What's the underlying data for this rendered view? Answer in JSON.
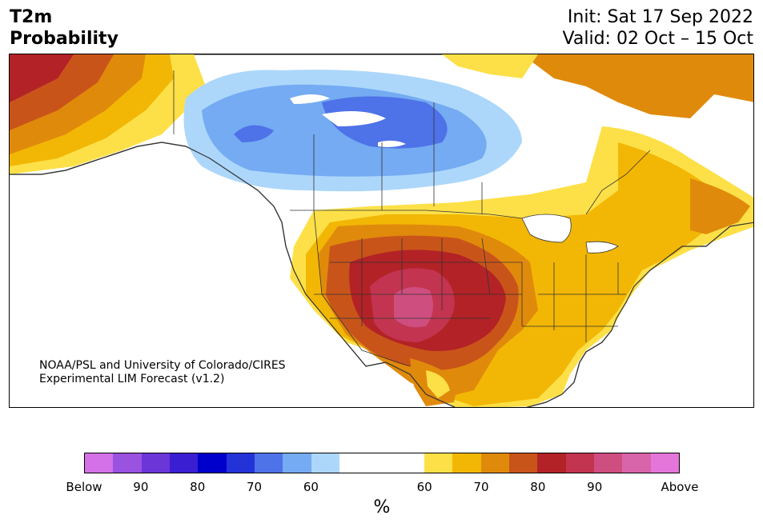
{
  "header": {
    "title": "T2m\nProbability",
    "init": "Init: Sat 17 Sep 2022",
    "valid": "Valid: 02 Oct – 15 Oct"
  },
  "credit": {
    "line1": "NOAA/PSL and University of Colorado/CIRES",
    "line2": "Experimental LIM Forecast (v1.2)"
  },
  "colorbar": {
    "unit": "%",
    "colors": [
      "#d471e8",
      "#9a52e0",
      "#6b35d8",
      "#3a1fd2",
      "#0000cc",
      "#2433d8",
      "#4e72e8",
      "#74abf2",
      "#acd7fb",
      "#ffffff",
      "#fde047",
      "#f2b705",
      "#e08a0b",
      "#c9541a",
      "#b32226",
      "#c23450",
      "#cf4e80",
      "#d864aa",
      "#e476da"
    ],
    "labels": [
      "Below",
      "90",
      "80",
      "70",
      "60",
      "60",
      "70",
      "80",
      "90",
      "Above"
    ]
  },
  "map": {
    "regions": [
      {
        "name": "above-80-alaska",
        "category": "above-80"
      },
      {
        "name": "below-60-canada",
        "category": "below-60"
      },
      {
        "name": "below-70-canada",
        "category": "below-70"
      },
      {
        "name": "below-80-canada",
        "category": "below-80"
      },
      {
        "name": "above-60-east",
        "category": "above-60"
      },
      {
        "name": "above-70-southwest",
        "category": "above-70"
      },
      {
        "name": "above-80-plains",
        "category": "above-80"
      },
      {
        "name": "above-90-texas",
        "category": "above-90"
      }
    ]
  }
}
